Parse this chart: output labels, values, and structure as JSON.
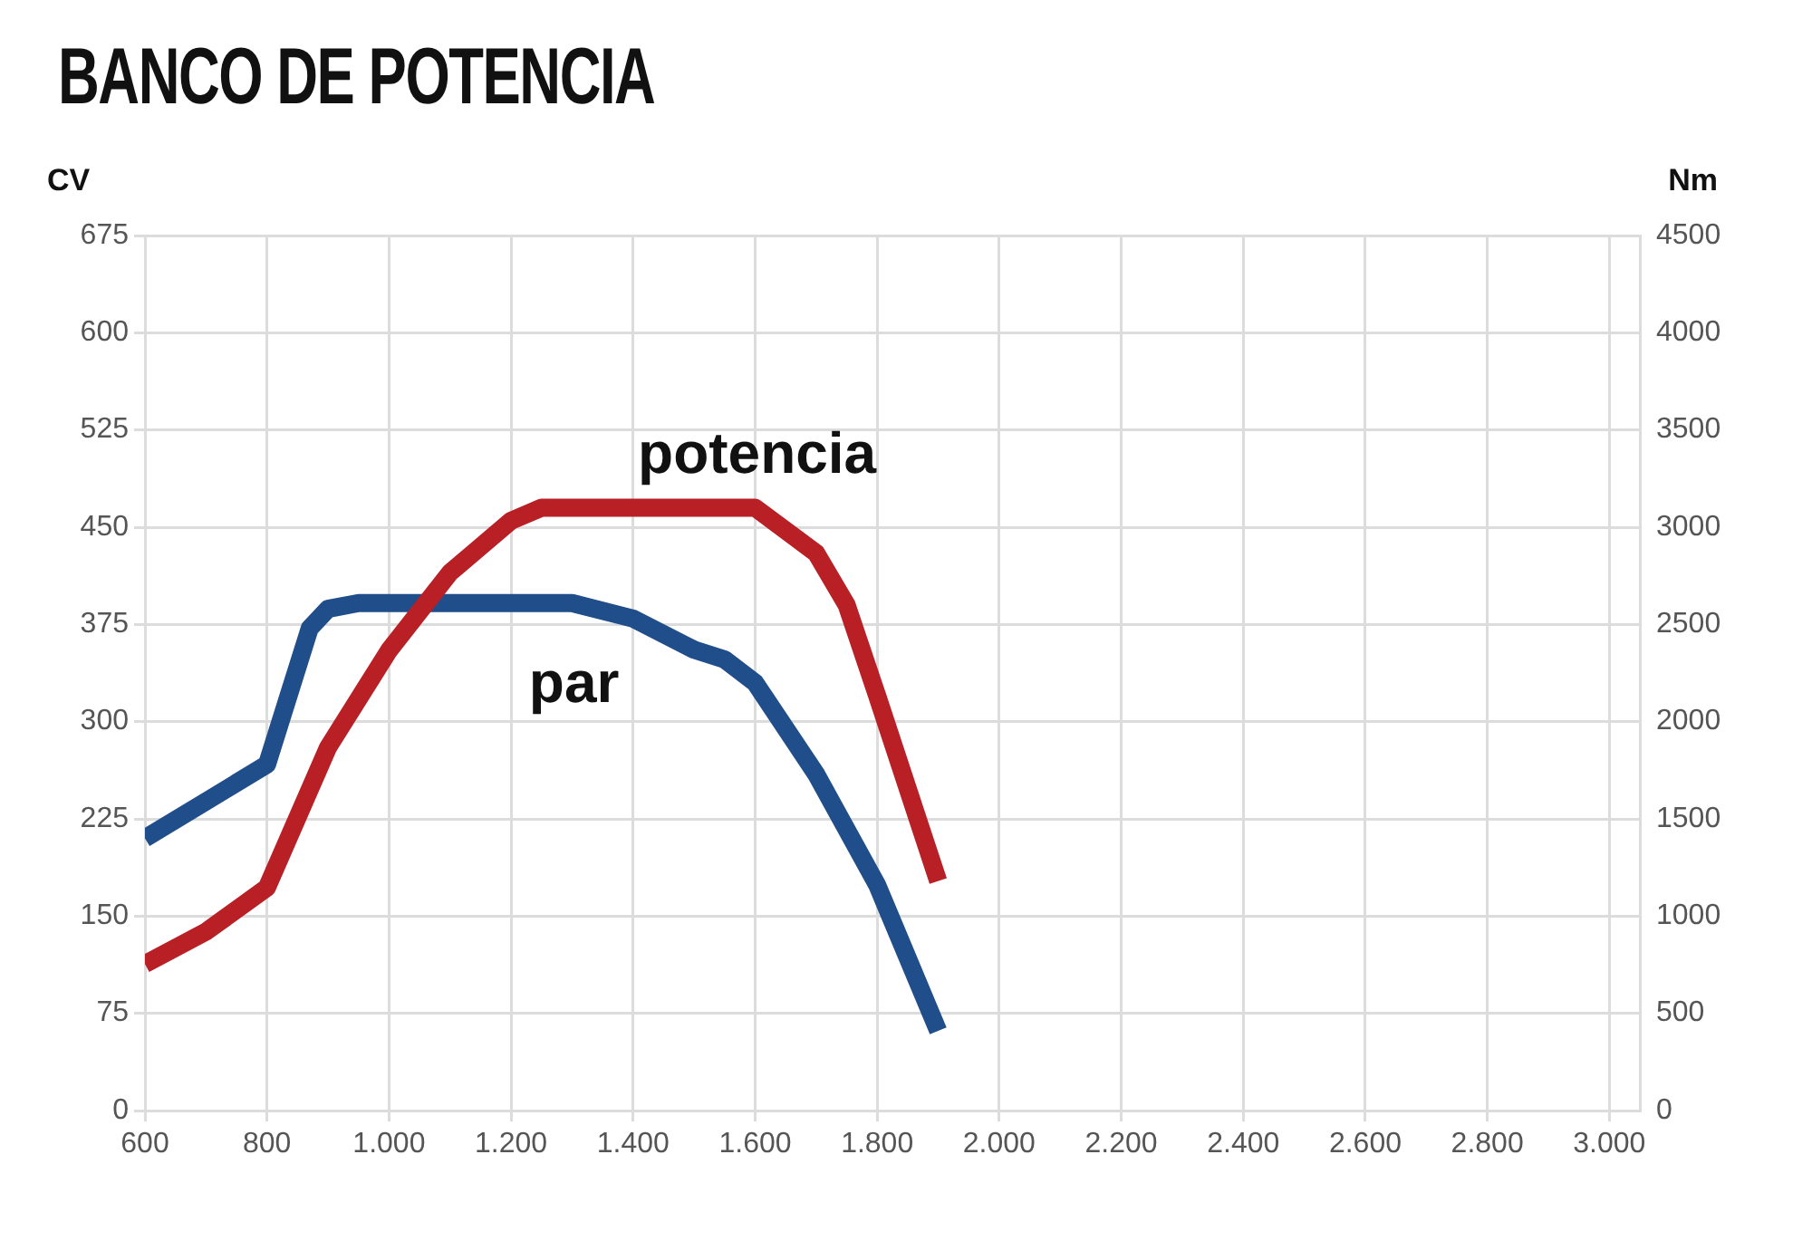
{
  "chart_data": {
    "type": "line",
    "title": "BANCO DE POTENCIA",
    "ylabel": "CV",
    "y2label": "Nm",
    "xlim": [
      600,
      3050
    ],
    "xticks": [
      {
        "value": 600,
        "label": "600"
      },
      {
        "value": 800,
        "label": "800"
      },
      {
        "value": 1000,
        "label": "1.000"
      },
      {
        "value": 1200,
        "label": "1.200"
      },
      {
        "value": 1400,
        "label": "1.400"
      },
      {
        "value": 1600,
        "label": "1.600"
      },
      {
        "value": 1800,
        "label": "1.800"
      },
      {
        "value": 2000,
        "label": "2.000"
      },
      {
        "value": 2200,
        "label": "2.200"
      },
      {
        "value": 2400,
        "label": "2.400"
      },
      {
        "value": 2600,
        "label": "2.600"
      },
      {
        "value": 2800,
        "label": "2.800"
      },
      {
        "value": 3000,
        "label": "3.000"
      }
    ],
    "ylim": [
      0,
      675
    ],
    "yticks": [
      0,
      75,
      150,
      225,
      300,
      375,
      450,
      525,
      600,
      675
    ],
    "y2lim": [
      0,
      4500
    ],
    "y2ticks": [
      0,
      500,
      1000,
      1500,
      2000,
      2500,
      3000,
      3500,
      4000,
      4500
    ],
    "grid": true,
    "legend": false,
    "marker": "none",
    "line_style": "solid",
    "series": [
      {
        "name": "potencia",
        "color": "#b82025",
        "x": [
          600,
          700,
          800,
          900,
          1000,
          1100,
          1200,
          1250,
          1600,
          1700,
          1750,
          1800,
          1900
        ],
        "values": [
          113,
          138,
          172,
          280,
          355,
          415,
          455,
          465,
          465,
          430,
          390,
          320,
          177
        ]
      },
      {
        "name": "par",
        "color": "#1f4e8a",
        "axis": "y2",
        "x": [
          600,
          700,
          800,
          870,
          900,
          950,
          1300,
          1400,
          1500,
          1550,
          1600,
          1700,
          1800,
          1900
        ],
        "values": [
          1400,
          1590,
          1780,
          2480,
          2580,
          2610,
          2610,
          2530,
          2370,
          2320,
          2200,
          1730,
          1160,
          410
        ]
      }
    ]
  }
}
